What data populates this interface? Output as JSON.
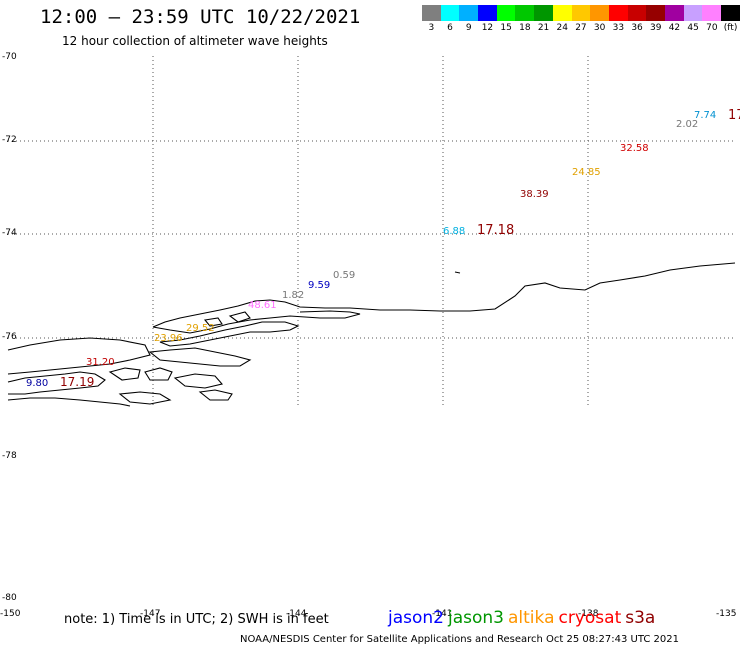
{
  "header": {
    "title": "12:00 – 23:59 UTC 10/22/2021",
    "subtitle": "12 hour collection of altimeter wave heights"
  },
  "colorbar": {
    "colors": [
      "#7f7f7f",
      "#00ffff",
      "#00b0ff",
      "#0000ff",
      "#00ff00",
      "#00c800",
      "#009600",
      "#ffff00",
      "#ffc800",
      "#ff9600",
      "#ff0000",
      "#c80000",
      "#960000",
      "#a000a0",
      "#c8a0ff",
      "#ff80ff",
      "#000000"
    ],
    "labels": [
      "3",
      "6",
      "9",
      "12",
      "15",
      "18",
      "21",
      "24",
      "27",
      "30",
      "33",
      "36",
      "39",
      "42",
      "45",
      "70",
      "(ft)"
    ]
  },
  "axes": {
    "lat_labels": [
      "-70",
      "-72",
      "-74",
      "-76",
      "-78",
      "-80"
    ],
    "lon_labels": [
      "-150",
      "-147",
      "-144",
      "-141",
      "-138",
      "-135"
    ]
  },
  "observations": [
    {
      "text": "7.74",
      "color": "#0090d0"
    },
    {
      "text": "2.02",
      "color": "#777777"
    },
    {
      "text": "17",
      "color": "#900000"
    },
    {
      "text": "32.58",
      "color": "#d00000"
    },
    {
      "text": "24.85",
      "color": "#e0a000"
    },
    {
      "text": "38.39",
      "color": "#900000"
    },
    {
      "text": "6.88",
      "color": "#00b0e0"
    },
    {
      "text": "17.18",
      "color": "#900000"
    },
    {
      "text": "0.59",
      "color": "#777777"
    },
    {
      "text": "9.59",
      "color": "#0000c0"
    },
    {
      "text": "1.82",
      "color": "#777777"
    },
    {
      "text": "48.61",
      "color": "#ff70ff"
    },
    {
      "text": "29.52",
      "color": "#e0a000"
    },
    {
      "text": "23.96",
      "color": "#e0a000"
    },
    {
      "text": "31.20",
      "color": "#c00000"
    },
    {
      "text": "9.80",
      "color": "#0000a0"
    },
    {
      "text": "17.19",
      "color": "#900000"
    }
  ],
  "footer": {
    "note": "note:  1) Time is in UTC;  2) SWH is in feet",
    "satellites": [
      {
        "name": "jason2",
        "color": "#0000ff"
      },
      {
        "name": "jason3",
        "color": "#009600"
      },
      {
        "name": "altika",
        "color": "#ff9600"
      },
      {
        "name": "cryosat",
        "color": "#ff0000"
      },
      {
        "name": "s3a",
        "color": "#900000"
      }
    ],
    "credit": "NOAA/NESDIS Center for Satellite Applications and Research     Oct 25 08:27:43 UTC 2021"
  }
}
